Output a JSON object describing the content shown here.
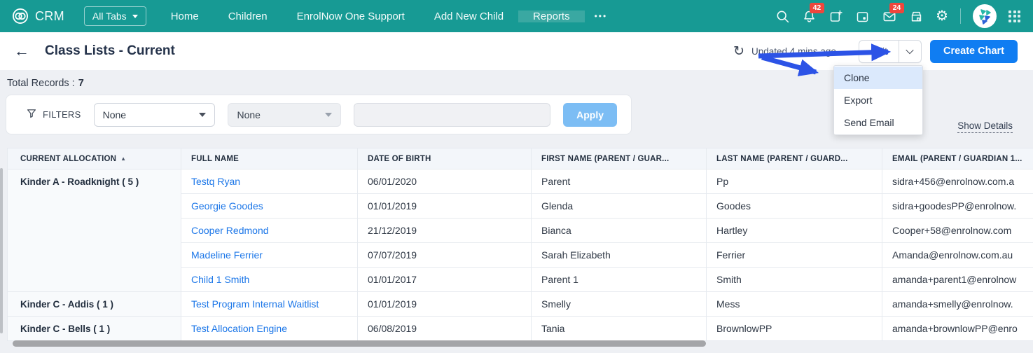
{
  "navbar": {
    "brand": "CRM",
    "all_tabs": {
      "label": "All Tabs"
    },
    "items": [
      {
        "label": "Home"
      },
      {
        "label": "Children"
      },
      {
        "label": "EnrolNow One Support"
      },
      {
        "label": "Add New Child"
      },
      {
        "label": "Reports"
      }
    ],
    "active_item": "Reports",
    "more_label": "•••",
    "badges": {
      "notifications": "42",
      "mail": "24"
    }
  },
  "header": {
    "title": "Class Lists - Current",
    "updated_text": "Updated 4 mins ago",
    "edit_label": "Edit",
    "create_chart_label": "Create Chart"
  },
  "menu": {
    "items": [
      {
        "label": "Clone",
        "highlighted": true
      },
      {
        "label": "Export",
        "highlighted": false
      },
      {
        "label": "Send Email",
        "highlighted": false
      }
    ]
  },
  "summary": {
    "total_records_label": "Total Records :",
    "total_records_value": "7"
  },
  "filters": {
    "section_label": "FILTERS",
    "field_dropdown_value": "None",
    "operator_dropdown_value": "None",
    "value_input": "",
    "apply_label": "Apply"
  },
  "details_link": {
    "label": "Show Details"
  },
  "table": {
    "columns": [
      "CURRENT ALLOCATION",
      "FULL NAME",
      "DATE OF BIRTH",
      "FIRST NAME (PARENT / GUAR...",
      "LAST NAME (PARENT / GUARD...",
      "EMAIL (PARENT / GUARDIAN 1..."
    ],
    "sort_indicator": "▲",
    "sorted_column": "CURRENT ALLOCATION",
    "groups": [
      {
        "allocation": "Kinder A - Roadknight ( 5 )",
        "rows": [
          {
            "full_name": "Testq Ryan",
            "dob": "06/01/2020",
            "first_name": "Parent",
            "last_name": "Pp",
            "email": "sidra+456@enrolnow.com.a"
          },
          {
            "full_name": "Georgie Goodes",
            "dob": "01/01/2019",
            "first_name": "Glenda",
            "last_name": "Goodes",
            "email": "sidra+goodesPP@enrolnow."
          },
          {
            "full_name": "Cooper Redmond",
            "dob": "21/12/2019",
            "first_name": "Bianca",
            "last_name": "Hartley",
            "email": "Cooper+58@enrolnow.com"
          },
          {
            "full_name": "Madeline Ferrier",
            "dob": "07/07/2019",
            "first_name": "Sarah Elizabeth",
            "last_name": "Ferrier",
            "email": "Amanda@enrolnow.com.au"
          },
          {
            "full_name": "Child 1 Smith",
            "dob": "01/01/2017",
            "first_name": "Parent 1",
            "last_name": "Smith",
            "email": "amanda+parent1@enrolnow"
          }
        ]
      },
      {
        "allocation": "Kinder C - Addis ( 1 )",
        "rows": [
          {
            "full_name": "Test Program Internal Waitlist",
            "dob": "01/01/2019",
            "first_name": "Smelly",
            "last_name": "Mess",
            "email": "amanda+smelly@enrolnow."
          }
        ]
      },
      {
        "allocation": "Kinder C - Bells ( 1 )",
        "rows": [
          {
            "full_name": "Test Allocation Engine",
            "dob": "06/08/2019",
            "first_name": "Tania",
            "last_name": "BrownlowPP",
            "email": "amanda+brownlowPP@enro"
          }
        ]
      }
    ]
  },
  "colors": {
    "navbar_teal": "#179a94",
    "active_tab_teal": "#3aa8a2",
    "badge_red": "#ef463c",
    "primary_blue": "#107df2",
    "link_blue": "#1b76e8",
    "annotation_arrow_blue": "#2c53e6",
    "apply_button_blue": "#7cbdf4",
    "menu_highlight": "#dbe9fc"
  }
}
